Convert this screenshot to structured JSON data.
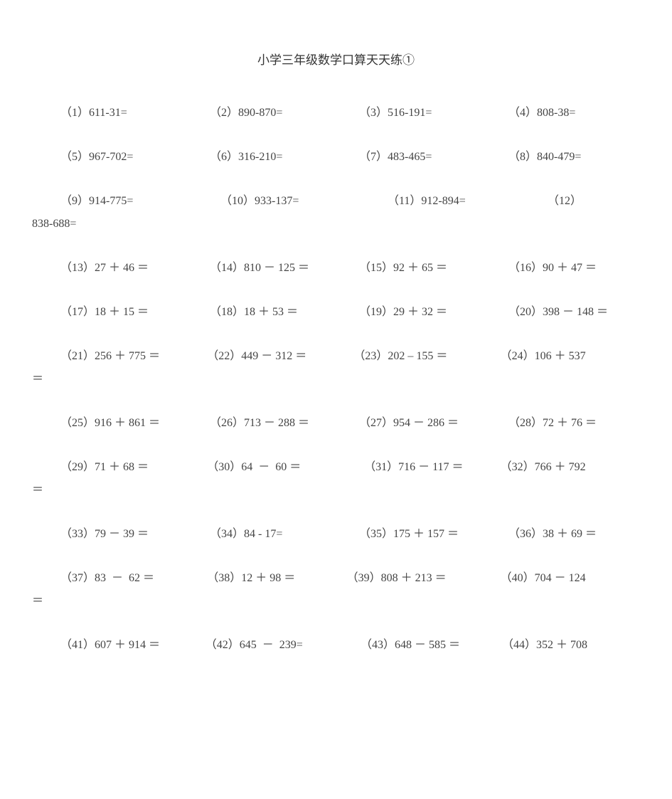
{
  "title": "小学三年级数学口算天天练①",
  "title_fontsize": 17,
  "body_fontsize": 16,
  "text_color": "#333333",
  "body_text_color": "#444444",
  "background_color": "#ffffff",
  "font_family": "SimSun",
  "rows": [
    {
      "type": "simple",
      "cells": [
        "（1）611-31=",
        "（2）890-870=",
        "（3）516-191=",
        "（4）808-38="
      ]
    },
    {
      "type": "simple",
      "cells": [
        "（5）967-702=",
        "（6）316-210=",
        "（7）483-465=",
        "（8）840-479="
      ]
    },
    {
      "type": "wrap",
      "line1": [
        "（9）914-775=",
        "（10）933-137=",
        "（11）912-894=",
        "（12）"
      ],
      "line1_widths": [
        225,
        235,
        225,
        100
      ],
      "line2": "838-688="
    },
    {
      "type": "simple",
      "cells": [
        "（13）27 ＋ 46 ＝",
        "（14）810 － 125 ＝",
        "（15）92 ＋ 65 ＝",
        "（16）90 ＋ 47 ＝"
      ]
    },
    {
      "type": "simple",
      "cells": [
        "（17）18 ＋ 15 ＝",
        "（18）18 ＋ 53 ＝",
        "（19）29 ＋ 32 ＝",
        "（20）398 － 148 ＝"
      ]
    },
    {
      "type": "wrap",
      "line1": [
        "（21）256 ＋ 775 ＝",
        "（22）449 － 312 ＝",
        "（23）202 – 155 ＝",
        "（24）106 ＋ 537"
      ],
      "line1_widths": [
        210,
        210,
        210,
        200
      ],
      "line2": "＝"
    },
    {
      "type": "simple",
      "cells": [
        "（25）916 ＋ 861 ＝",
        "（26）713 － 288 ＝",
        "（27）954 － 286 ＝",
        "（28）72 ＋ 76 ＝"
      ]
    },
    {
      "type": "wrap",
      "line1": [
        "（29）71 ＋ 68 ＝",
        "（30）64  －  60 ＝",
        "（31）716 － 117 ＝",
        "（32）766 ＋ 792"
      ],
      "line1_widths": [
        210,
        225,
        195,
        200
      ],
      "line2": "＝"
    },
    {
      "type": "simple",
      "cells": [
        "（33）79 － 39 ＝",
        "（34）84 - 17=",
        "（35）175 ＋ 157 ＝",
        "（36）38 ＋ 69 ＝"
      ]
    },
    {
      "type": "wrap",
      "line1": [
        "（37）83  －  62 ＝",
        "（38）12 ＋ 98 ＝",
        "（39）808 ＋ 213 ＝",
        "（40）704 － 124"
      ],
      "line1_widths": [
        210,
        200,
        220,
        200
      ],
      "line2": "＝"
    },
    {
      "type": "wrap",
      "line1": [
        "（41）607 ＋ 914 ＝",
        "（42）645  －  239=",
        "（43）648 － 585 ＝",
        "（44）352 ＋ 708"
      ],
      "line1_widths": [
        210,
        225,
        205,
        200
      ],
      "line2": ""
    }
  ]
}
